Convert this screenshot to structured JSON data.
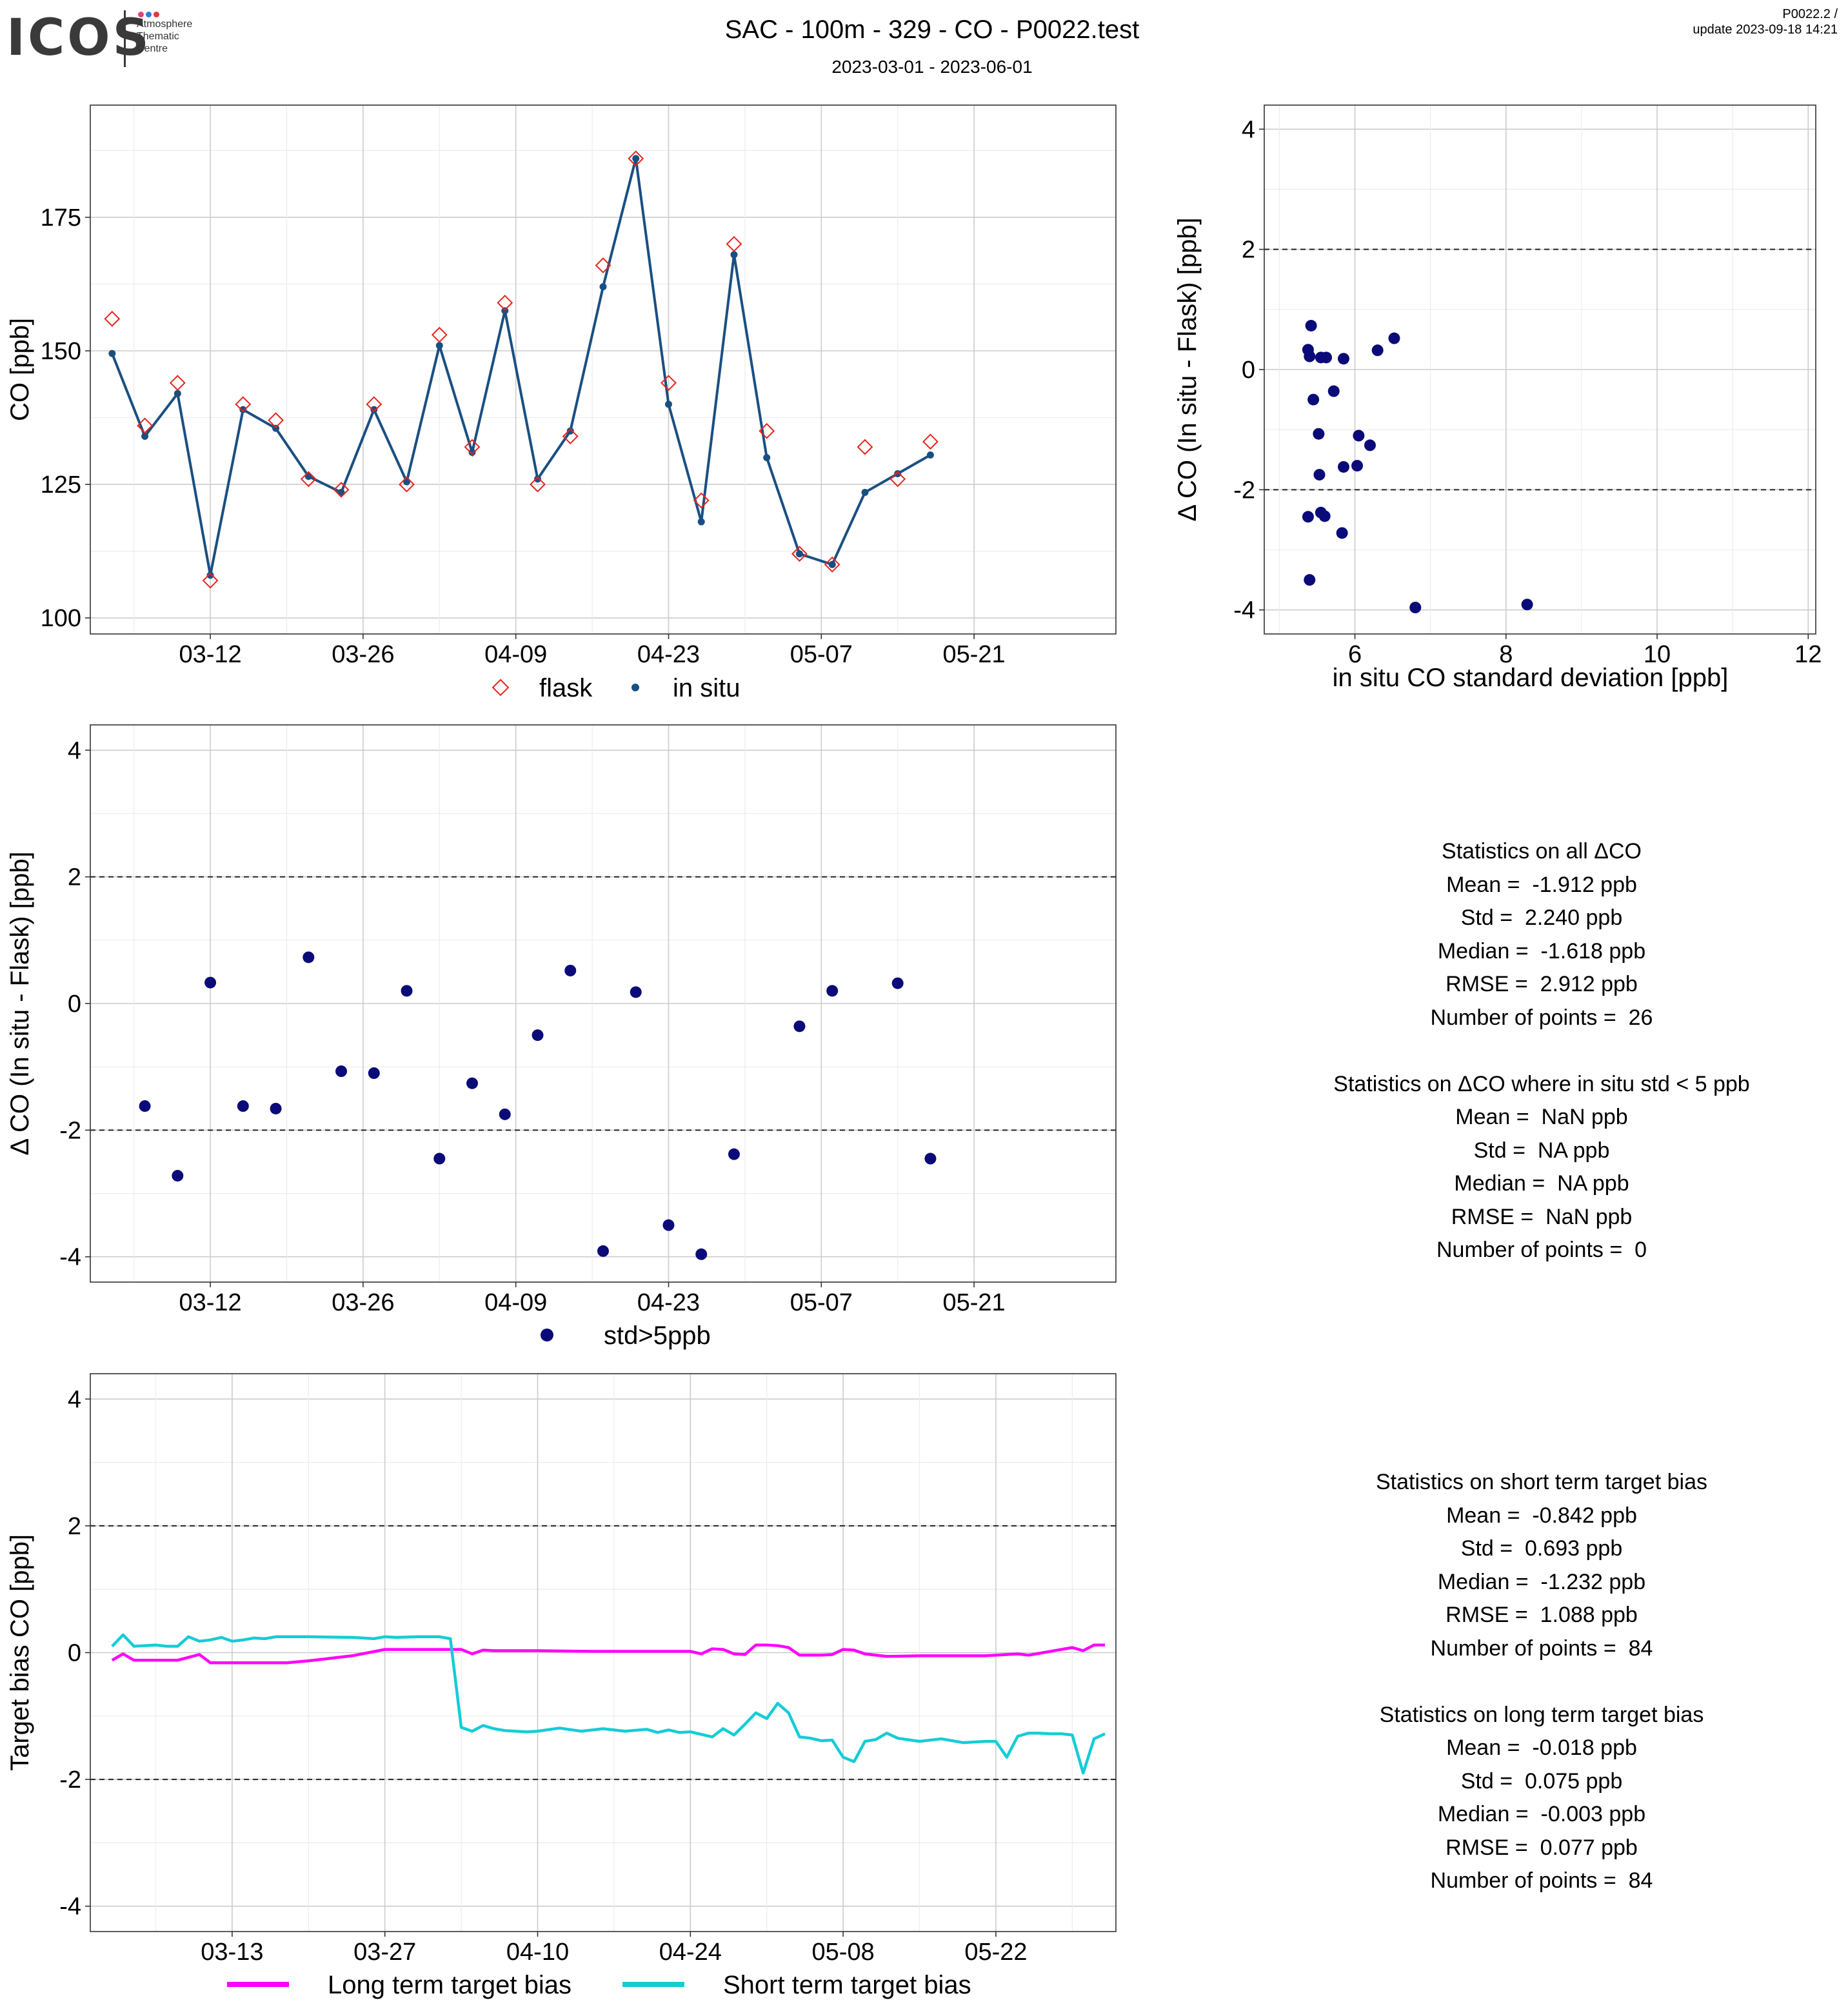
{
  "header": {
    "logo_word": "ICOS",
    "logo_subtitle": [
      "Atmosphere",
      "Thematic",
      "Centre"
    ],
    "logo_dot_colors": [
      "#e0457b",
      "#2f7fd6",
      "#e03a3a"
    ],
    "title": "SAC - 100m - 329 - CO - P0022.test",
    "subtitle": "2023-03-01 - 2023-06-01",
    "corner_line1": "P0022.2 /",
    "corner_line2": "update  2023-09-18 14:21"
  },
  "colors": {
    "flask": "#e8231e",
    "insitu": "#1a4f82",
    "delta": "#0a0a78",
    "long_term": "#ff00ff",
    "short_term": "#13cdd6",
    "grid_major": "#cccccc",
    "grid_minor": "#ececec"
  },
  "chart_data": [
    {
      "id": "co_timeseries",
      "type": "line",
      "ylabel": "CO [ppb]",
      "xlabel": "",
      "x_ticks": [
        "03-12",
        "03-26",
        "04-09",
        "04-23",
        "05-07",
        "05-21"
      ],
      "ylim": [
        97,
        196
      ],
      "y_ticks": [
        100,
        125,
        150,
        175
      ],
      "legend": [
        "flask",
        "in situ"
      ],
      "legend_position": "bottom",
      "series": [
        {
          "name": "flask",
          "style": "diamond",
          "x": [
            "03-03",
            "03-06",
            "03-09",
            "03-12",
            "03-15",
            "03-18",
            "03-21",
            "03-24",
            "03-27",
            "03-30",
            "04-02",
            "04-05",
            "04-08",
            "04-11",
            "04-14",
            "04-17",
            "04-20",
            "04-23",
            "04-26",
            "04-29",
            "05-02",
            "05-05",
            "05-08",
            "05-11",
            "05-14",
            "05-17"
          ],
          "values": [
            156,
            136,
            144,
            107,
            140,
            137,
            126,
            124,
            140,
            125,
            153,
            132,
            159,
            125,
            134,
            166,
            186,
            144,
            122,
            170,
            135,
            112,
            110,
            132,
            126,
            133
          ]
        },
        {
          "name": "in situ",
          "style": "line-point",
          "x": [
            "03-03",
            "03-06",
            "03-09",
            "03-12",
            "03-15",
            "03-18",
            "03-21",
            "03-24",
            "03-27",
            "03-30",
            "04-02",
            "04-05",
            "04-08",
            "04-11",
            "04-14",
            "04-17",
            "04-20",
            "04-23",
            "04-26",
            "04-29",
            "05-02",
            "05-05",
            "05-08",
            "05-11",
            "05-14",
            "05-17"
          ],
          "values": [
            149.5,
            134,
            142,
            108,
            139,
            135.5,
            126.5,
            123.5,
            139,
            125.5,
            151,
            131,
            157.5,
            126,
            135,
            162,
            186,
            140,
            118,
            168,
            130,
            112,
            110,
            123.5,
            127,
            130.5
          ]
        }
      ]
    },
    {
      "id": "delta_vs_std",
      "type": "scatter",
      "xlabel": "in situ CO standard deviation [ppb]",
      "ylabel": "Δ CO (In situ - Flask) [ppb]",
      "xlim": [
        4.8,
        12.1
      ],
      "ylim": [
        -4.4,
        4.4
      ],
      "x_ticks": [
        6,
        8,
        10,
        12
      ],
      "y_ticks": [
        -4,
        -2,
        0,
        2,
        4
      ],
      "reference_lines": [
        2,
        -2
      ],
      "x": [
        5.42,
        5.38,
        5.4,
        5.45,
        5.55,
        5.62,
        5.85,
        6.52,
        6.3,
        5.72,
        5.52,
        6.05,
        6.2,
        5.53,
        5.85,
        6.03,
        5.38,
        5.55,
        5.6,
        5.83,
        5.4,
        6.8,
        8.28
      ],
      "values": [
        0.73,
        0.33,
        0.22,
        -0.5,
        0.2,
        0.2,
        0.18,
        0.52,
        0.32,
        -0.36,
        -1.07,
        -1.1,
        -1.26,
        -1.75,
        -1.62,
        -1.6,
        -2.45,
        -2.38,
        -2.44,
        -2.72,
        -3.5,
        -3.96,
        -3.91
      ]
    },
    {
      "id": "delta_timeseries",
      "type": "scatter",
      "ylabel": "Δ CO (In situ - Flask) [ppb]",
      "xlabel": "",
      "x_ticks": [
        "03-12",
        "03-26",
        "04-09",
        "04-23",
        "05-07",
        "05-21"
      ],
      "ylim": [
        -4.4,
        4.4
      ],
      "y_ticks": [
        -4,
        -2,
        0,
        2,
        4
      ],
      "reference_lines": [
        2,
        -2
      ],
      "legend": [
        "std>5ppb"
      ],
      "legend_position": "bottom",
      "x": [
        "03-06",
        "03-09",
        "03-12",
        "03-15",
        "03-18",
        "03-21",
        "03-24",
        "03-27",
        "03-30",
        "04-02",
        "04-05",
        "04-08",
        "04-11",
        "04-14",
        "04-17",
        "04-20",
        "04-23",
        "04-26",
        "04-29",
        "05-05",
        "05-08",
        "05-14",
        "05-17"
      ],
      "values": [
        -1.62,
        -2.72,
        0.33,
        -1.62,
        -1.66,
        0.73,
        -1.07,
        -1.1,
        0.2,
        -2.45,
        -1.26,
        -1.75,
        -0.5,
        0.52,
        -3.91,
        0.18,
        -3.5,
        -3.96,
        -2.38,
        -0.36,
        0.2,
        0.32,
        -2.45
      ]
    },
    {
      "id": "target_bias",
      "type": "line",
      "ylabel": "Target bias CO [ppb]",
      "xlabel": "",
      "x_ticks": [
        "03-13",
        "03-27",
        "04-10",
        "04-24",
        "05-08",
        "05-22"
      ],
      "ylim": [
        -4.4,
        4.4
      ],
      "y_ticks": [
        -4,
        -2,
        0,
        2,
        4
      ],
      "reference_lines": [
        2,
        -2
      ],
      "legend": [
        "Long term target bias",
        "Short term target bias"
      ],
      "legend_position": "bottom",
      "series": [
        {
          "name": "Long term target bias",
          "x": [
            "03-02",
            "03-03",
            "03-04",
            "03-06",
            "03-08",
            "03-10",
            "03-11",
            "03-13",
            "03-15",
            "03-18",
            "03-20",
            "03-24",
            "03-27",
            "03-30",
            "04-01",
            "04-03",
            "04-04",
            "04-05",
            "04-06",
            "04-10",
            "04-15",
            "04-20",
            "04-24",
            "04-25",
            "04-26",
            "04-27",
            "04-28",
            "04-29",
            "04-30",
            "05-01",
            "05-02",
            "05-03",
            "05-04",
            "05-05",
            "05-06",
            "05-07",
            "05-08",
            "05-09",
            "05-10",
            "05-12",
            "05-15",
            "05-18",
            "05-21",
            "05-24",
            "05-25",
            "05-26",
            "05-27",
            "05-28",
            "05-29",
            "05-30",
            "05-31",
            "06-01"
          ],
          "values": [
            -0.12,
            -0.02,
            -0.12,
            -0.12,
            -0.12,
            -0.03,
            -0.16,
            -0.16,
            -0.16,
            -0.16,
            -0.13,
            -0.05,
            0.05,
            0.05,
            0.05,
            0.05,
            -0.02,
            0.04,
            0.03,
            0.03,
            0.02,
            0.02,
            0.02,
            -0.02,
            0.06,
            0.05,
            -0.02,
            -0.03,
            0.12,
            0.12,
            0.11,
            0.08,
            -0.04,
            -0.04,
            -0.04,
            -0.03,
            0.05,
            0.04,
            -0.02,
            -0.06,
            -0.05,
            -0.05,
            -0.05,
            -0.02,
            -0.04,
            -0.01,
            0.02,
            0.05,
            0.08,
            0.03,
            0.12,
            0.12
          ]
        },
        {
          "name": "Short term target bias",
          "x": [
            "03-02",
            "03-03",
            "03-04",
            "03-06",
            "03-07",
            "03-08",
            "03-09",
            "03-10",
            "03-11",
            "03-12",
            "03-13",
            "03-14",
            "03-15",
            "03-16",
            "03-17",
            "03-18",
            "03-20",
            "03-24",
            "03-26",
            "03-27",
            "03-28",
            "03-30",
            "04-01",
            "04-02",
            "04-03",
            "04-04",
            "04-05",
            "04-06",
            "04-07",
            "04-08",
            "04-09",
            "04-10",
            "04-12",
            "04-14",
            "04-16",
            "04-18",
            "04-20",
            "04-21",
            "04-22",
            "04-23",
            "04-24",
            "04-26",
            "04-27",
            "04-28",
            "04-29",
            "04-30",
            "05-01",
            "05-02",
            "05-03",
            "05-04",
            "05-05",
            "05-06",
            "05-07",
            "05-08",
            "05-09",
            "05-10",
            "05-11",
            "05-12",
            "05-13",
            "05-15",
            "05-17",
            "05-19",
            "05-21",
            "05-22",
            "05-23",
            "05-24",
            "05-25",
            "05-26",
            "05-27",
            "05-28",
            "05-29",
            "05-30",
            "05-31",
            "06-01"
          ],
          "values": [
            0.1,
            0.28,
            0.1,
            0.12,
            0.1,
            0.1,
            0.25,
            0.18,
            0.2,
            0.24,
            0.18,
            0.2,
            0.23,
            0.22,
            0.25,
            0.25,
            0.25,
            0.24,
            0.22,
            0.25,
            0.24,
            0.25,
            0.25,
            0.22,
            -1.18,
            -1.24,
            -1.15,
            -1.2,
            -1.23,
            -1.24,
            -1.25,
            -1.24,
            -1.19,
            -1.24,
            -1.2,
            -1.24,
            -1.21,
            -1.26,
            -1.22,
            -1.26,
            -1.25,
            -1.33,
            -1.2,
            -1.3,
            -1.13,
            -0.95,
            -1.04,
            -0.8,
            -0.95,
            -1.33,
            -1.35,
            -1.39,
            -1.38,
            -1.65,
            -1.72,
            -1.4,
            -1.37,
            -1.27,
            -1.35,
            -1.4,
            -1.36,
            -1.42,
            -1.4,
            -1.4,
            -1.65,
            -1.32,
            -1.27,
            -1.27,
            -1.28,
            -1.28,
            -1.3,
            -1.9,
            -1.36,
            -1.28
          ]
        }
      ]
    }
  ],
  "stats_flask": [
    "Statistics on all ΔCO",
    "Mean =  -1.912 ppb",
    "Std =  2.240 ppb",
    "Median =  -1.618 ppb",
    "RMSE =  2.912 ppb",
    "Number of points =  26",
    "",
    "Statistics on ΔCO where in situ std < 5 ppb",
    "Mean =  NaN ppb",
    "Std =  NA ppb",
    "Median =  NA ppb",
    "RMSE =  NaN ppb",
    "Number of points =  0"
  ],
  "stats_target": [
    "Statistics on short term target bias",
    "Mean =  -0.842 ppb",
    "Std =  0.693 ppb",
    "Median =  -1.232 ppb",
    "RMSE =  1.088 ppb",
    "Number of points =  84",
    "",
    "Statistics on long term target bias",
    "Mean =  -0.018 ppb",
    "Std =  0.075 ppb",
    "Median =  -0.003 ppb",
    "RMSE =  0.077 ppb",
    "Number of points =  84"
  ]
}
